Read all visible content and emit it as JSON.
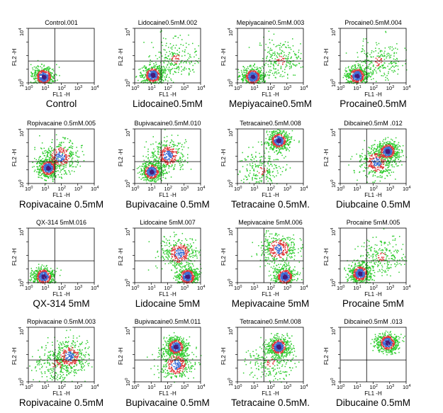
{
  "chart_data": {
    "type": "scatter",
    "grid": false,
    "axes": {
      "xlabel": "FL1 -H",
      "ylabel": "FL2 -H",
      "x_scale": "log",
      "y_scale": "log",
      "xlim": [
        1,
        10000
      ],
      "ylim": [
        1,
        10000
      ],
      "x_ticks": [
        "10",
        "10",
        "10",
        "10",
        "10"
      ],
      "x_tick_exponents": [
        "0",
        "1",
        "2",
        "3",
        "4"
      ],
      "y_ticks": [
        "10",
        "10"
      ],
      "y_tick_exponents": [
        "0",
        "4"
      ],
      "quadrant_gate": [
        40,
        40
      ]
    },
    "colors": {
      "sparse": "#2ecc2e",
      "medium": "#e0373a",
      "dense": "#3b6fd8",
      "core": "#4a1a7a",
      "gate": "#000000"
    },
    "panels": [
      {
        "title": "Control.001",
        "caption": "Control",
        "clusters": [
          {
            "x": 8,
            "y": 3,
            "density": "high"
          }
        ]
      },
      {
        "title": "Lidocaine0.5mM.002",
        "caption": "Lidocaine0.5mM",
        "clusters": [
          {
            "x": 12,
            "y": 4,
            "density": "high"
          },
          {
            "x": 300,
            "y": 60,
            "density": "low"
          }
        ]
      },
      {
        "title": "Mepiyacaine0.5mM.003",
        "caption": "Mepiyacaine0.5mM",
        "clusters": [
          {
            "x": 8,
            "y": 3,
            "density": "high"
          },
          {
            "x": 400,
            "y": 50,
            "density": "low"
          }
        ]
      },
      {
        "title": "Procaine0.5mM.004",
        "caption": "Procaine0.5mM",
        "clusters": [
          {
            "x": 10,
            "y": 3.5,
            "density": "high"
          },
          {
            "x": 200,
            "y": 40,
            "density": "low"
          }
        ]
      },
      {
        "title": "Ropivacaine 0.5mM.005",
        "caption": "Ropivacaine 0.5mM",
        "clusters": [
          {
            "x": 15,
            "y": 15,
            "density": "high"
          },
          {
            "x": 80,
            "y": 100,
            "density": "medium"
          }
        ]
      },
      {
        "title": "Bupivacaine0.5mM.010",
        "caption": "Bupivacaine 0.5mM",
        "clusters": [
          {
            "x": 10,
            "y": 8,
            "density": "high"
          },
          {
            "x": 100,
            "y": 120,
            "density": "medium"
          }
        ]
      },
      {
        "title": "Tetracaine0.5mM.008",
        "caption": "Tetracaine 0.5mM.",
        "clusters": [
          {
            "x": 300,
            "y": 1500,
            "density": "high"
          },
          {
            "x": 30,
            "y": 10,
            "density": "low"
          }
        ]
      },
      {
        "title": "Dibcaine0.5mM .012",
        "caption": "Diubcaine 0.5mM",
        "clusters": [
          {
            "x": 700,
            "y": 250,
            "density": "high"
          },
          {
            "x": 150,
            "y": 40,
            "density": "medium"
          }
        ]
      },
      {
        "title": "QX-314 5mM.016",
        "caption": "QX-314 5mM",
        "clusters": [
          {
            "x": 8,
            "y": 3,
            "density": "high"
          }
        ]
      },
      {
        "title": "Lidocaine 5mM.007",
        "caption": "Lidocaine 5mM",
        "clusters": [
          {
            "x": 500,
            "y": 150,
            "density": "medium"
          },
          {
            "x": 1500,
            "y": 3,
            "density": "high"
          }
        ]
      },
      {
        "title": "Mepivacaine 5mM.006",
        "caption": "Mepivacaine 5mM",
        "clusters": [
          {
            "x": 300,
            "y": 300,
            "density": "medium"
          },
          {
            "x": 700,
            "y": 3,
            "density": "high"
          }
        ]
      },
      {
        "title": "Procaine 5mM.005",
        "caption": "Procaine 5mM",
        "clusters": [
          {
            "x": 15,
            "y": 5,
            "density": "high"
          },
          {
            "x": 300,
            "y": 80,
            "density": "low"
          }
        ]
      },
      {
        "title": "Ropivacaine 0.5mM.003",
        "caption": "Ropivacaine 0.5mM",
        "clusters": [
          {
            "x": 300,
            "y": 80,
            "density": "medium"
          },
          {
            "x": 50,
            "y": 20,
            "density": "low"
          }
        ]
      },
      {
        "title": "Bupivacaine0.5mM.011",
        "caption": "Bupivacaine 0.5mM",
        "clusters": [
          {
            "x": 300,
            "y": 400,
            "density": "high"
          },
          {
            "x": 300,
            "y": 20,
            "density": "medium"
          }
        ]
      },
      {
        "title": "Tetracaine0.5mM.008",
        "caption": "Tetracaine 0.5mM.",
        "clusters": [
          {
            "x": 300,
            "y": 400,
            "density": "high"
          },
          {
            "x": 100,
            "y": 30,
            "density": "low"
          }
        ]
      },
      {
        "title": "Dibcaine0.5mM .013",
        "caption": "Dibucaine 0.5mM",
        "clusters": [
          {
            "x": 700,
            "y": 800,
            "density": "high"
          }
        ]
      }
    ]
  }
}
